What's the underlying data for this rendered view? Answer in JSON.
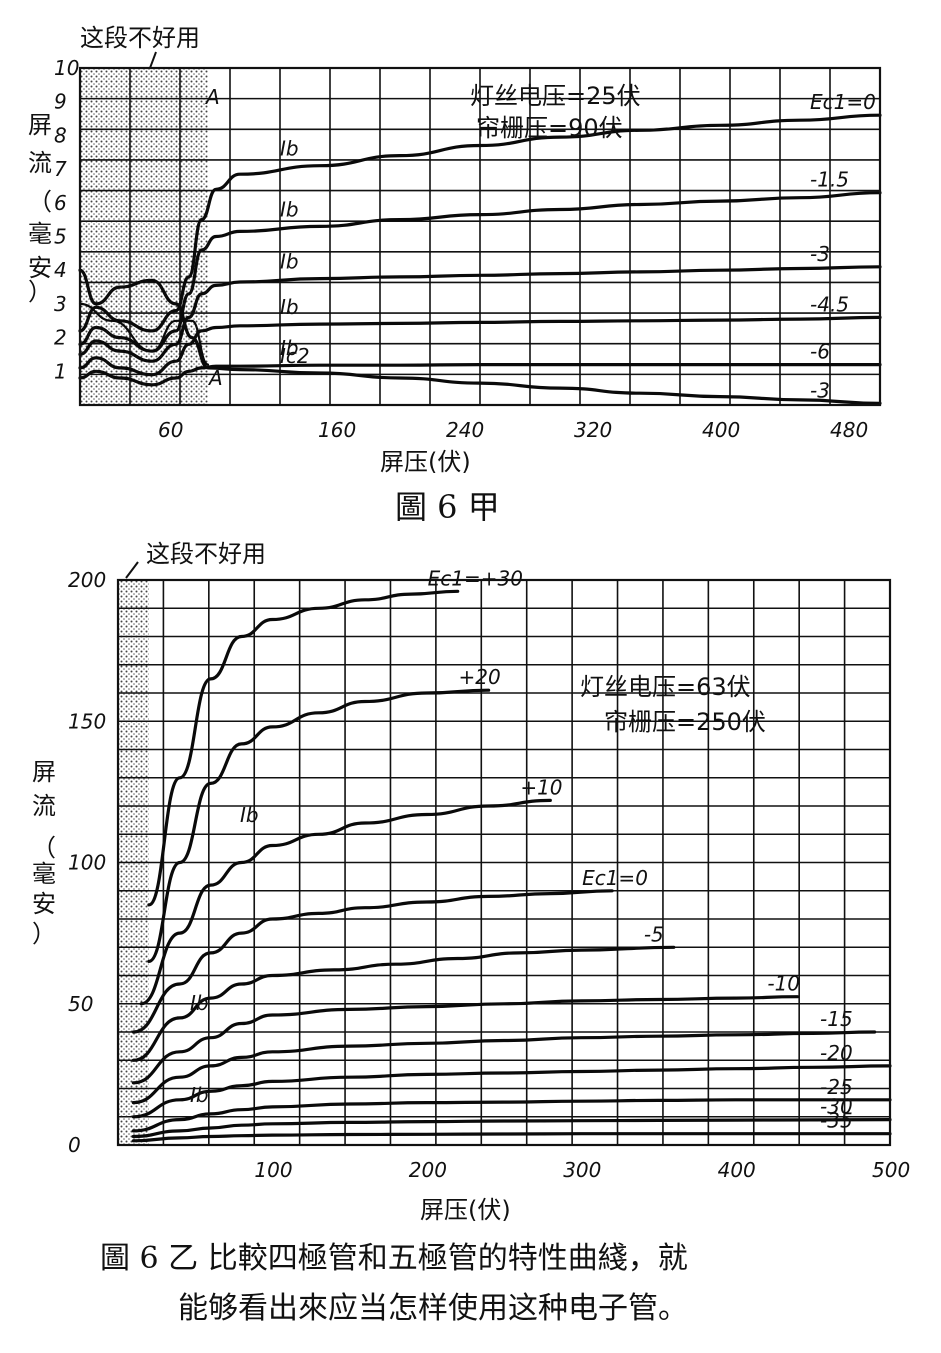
{
  "chart_data": [
    {
      "type": "line",
      "title": "",
      "xlabel": "屏压(伏)",
      "ylabel": "屏流(毫安)",
      "xlim": [
        0,
        500
      ],
      "ylim": [
        0,
        10
      ],
      "x_ticks": [
        "60",
        "160",
        "240",
        "320",
        "400",
        "480"
      ],
      "x_tick_values": [
        60,
        160,
        240,
        320,
        400,
        480
      ],
      "y_ticks": [
        "1",
        "2",
        "3",
        "4",
        "5",
        "6",
        "7",
        "8",
        "9",
        "10"
      ],
      "shaded_region": {
        "label": "这段不好用",
        "x_from": 0,
        "x_to": 80
      },
      "conditions": [
        "灯丝电压=25伏",
        "帘栅压=90伏"
      ],
      "marker": "A",
      "series": [
        {
          "name": "Ec1=0",
          "label": "Ec1=0",
          "curve_label": "Ib",
          "x": [
            0,
            10,
            25,
            45,
            60,
            68,
            76,
            85,
            100,
            150,
            200,
            250,
            300,
            350,
            400,
            450,
            500
          ],
          "y": [
            2.2,
            2.9,
            2.5,
            2.2,
            2.8,
            3.8,
            5.5,
            6.4,
            6.85,
            7.1,
            7.4,
            7.7,
            7.95,
            8.15,
            8.3,
            8.45,
            8.6
          ]
        },
        {
          "name": "-1.5",
          "label": "-1.5",
          "curve_label": "Ib",
          "x": [
            0,
            10,
            25,
            45,
            60,
            68,
            76,
            85,
            100,
            150,
            200,
            250,
            300,
            350,
            400,
            450,
            500
          ],
          "y": [
            1.8,
            2.3,
            2.0,
            1.6,
            2.2,
            3.3,
            4.6,
            5.0,
            5.15,
            5.3,
            5.5,
            5.65,
            5.8,
            5.95,
            6.05,
            6.15,
            6.3
          ]
        },
        {
          "name": "-3",
          "label": "-3",
          "curve_label": "Ib",
          "x": [
            0,
            10,
            25,
            45,
            60,
            68,
            76,
            85,
            100,
            150,
            200,
            250,
            300,
            350,
            400,
            450,
            500
          ],
          "y": [
            1.5,
            1.9,
            1.6,
            1.3,
            1.8,
            2.6,
            3.3,
            3.55,
            3.65,
            3.75,
            3.8,
            3.85,
            3.9,
            3.95,
            4.0,
            4.05,
            4.1
          ]
        },
        {
          "name": "-4.5",
          "label": "-4.5",
          "curve_label": "Ib",
          "x": [
            0,
            10,
            25,
            45,
            60,
            68,
            76,
            85,
            100,
            150,
            200,
            250,
            300,
            350,
            400,
            450,
            500
          ],
          "y": [
            1.1,
            1.4,
            1.1,
            0.9,
            1.3,
            1.8,
            2.2,
            2.3,
            2.35,
            2.4,
            2.42,
            2.45,
            2.48,
            2.5,
            2.52,
            2.55,
            2.6
          ]
        },
        {
          "name": "-6",
          "label": "-6",
          "curve_label": "Ib",
          "x": [
            0,
            10,
            25,
            45,
            60,
            68,
            76,
            85,
            100,
            150,
            200,
            250,
            300,
            350,
            400,
            450,
            500
          ],
          "y": [
            0.8,
            1.0,
            0.8,
            0.6,
            0.8,
            1.0,
            1.1,
            1.15,
            1.15,
            1.18,
            1.18,
            1.2,
            1.2,
            1.2,
            1.2,
            1.2,
            1.2
          ]
        },
        {
          "name": "Ic2 (-3)",
          "label": "-3",
          "curve_label": "Ic2",
          "x": [
            0,
            10,
            25,
            45,
            60,
            70,
            80,
            100,
            150,
            200,
            250,
            300,
            350,
            400,
            450,
            500
          ],
          "y": [
            4.0,
            3.0,
            3.5,
            3.7,
            3.0,
            2.0,
            1.1,
            1.05,
            0.95,
            0.8,
            0.65,
            0.5,
            0.35,
            0.25,
            0.15,
            0.05
          ]
        },
        {
          "name": "",
          "label": "",
          "curve_label": "",
          "x": [
            0,
            20,
            45,
            60,
            70,
            80
          ],
          "y": [
            3.0,
            2.5,
            1.6,
            2.5,
            2.5,
            1.2
          ]
        }
      ]
    },
    {
      "type": "line",
      "title": "",
      "xlabel": "屏压(伏)",
      "ylabel": "屏流(毫安)",
      "xlim": [
        0,
        500
      ],
      "ylim": [
        0,
        200
      ],
      "x_ticks": [
        "100",
        "200",
        "300",
        "400",
        "500"
      ],
      "x_tick_values": [
        100,
        200,
        300,
        400,
        500
      ],
      "y_ticks": [
        "0",
        "50",
        "100",
        "150",
        "200"
      ],
      "y_tick_values": [
        0,
        50,
        100,
        150,
        200
      ],
      "shaded_region": {
        "label": "这段不好用",
        "x_from": 0,
        "x_to": 20
      },
      "conditions": [
        "灯丝电压=63伏",
        "帘栅压=250伏"
      ],
      "series": [
        {
          "name": "Ec1=+30",
          "label": "Ec1=+30",
          "x": [
            20,
            40,
            60,
            80,
            100,
            130,
            160,
            190,
            220
          ],
          "y": [
            85,
            130,
            165,
            180,
            186,
            190,
            193,
            195,
            196
          ]
        },
        {
          "name": "+20",
          "label": "+20",
          "x": [
            20,
            40,
            60,
            80,
            100,
            130,
            160,
            200,
            240
          ],
          "y": [
            65,
            100,
            128,
            142,
            148,
            153,
            157,
            160,
            161
          ]
        },
        {
          "name": "+10",
          "label": "+10",
          "x": [
            15,
            40,
            60,
            80,
            100,
            130,
            160,
            200,
            240,
            280
          ],
          "y": [
            50,
            75,
            92,
            100,
            106,
            110,
            114,
            117,
            120,
            122
          ]
        },
        {
          "name": "Ec1=0",
          "label": "Ec1=0",
          "x": [
            10,
            40,
            60,
            80,
            100,
            130,
            160,
            200,
            240,
            280,
            320
          ],
          "y": [
            40,
            57,
            68,
            75,
            80,
            82,
            84,
            86,
            88,
            89,
            90
          ]
        },
        {
          "name": "-5",
          "label": "-5",
          "x": [
            10,
            40,
            60,
            80,
            100,
            140,
            180,
            220,
            260,
            300,
            360
          ],
          "y": [
            30,
            45,
            52,
            57,
            60,
            62,
            64,
            66,
            68,
            69,
            70
          ]
        },
        {
          "name": "-10",
          "label": "-10",
          "x": [
            10,
            40,
            60,
            80,
            100,
            150,
            200,
            250,
            300,
            350,
            400,
            440
          ],
          "y": [
            22,
            33,
            38,
            43,
            46,
            48,
            49,
            50,
            51,
            51.5,
            52,
            52.5
          ]
        },
        {
          "name": "-15",
          "label": "-15",
          "x": [
            10,
            40,
            60,
            80,
            100,
            150,
            200,
            250,
            300,
            350,
            400,
            450,
            490
          ],
          "y": [
            15,
            24,
            28,
            31,
            33,
            35,
            36,
            37,
            38,
            38.5,
            39,
            39.5,
            40
          ]
        },
        {
          "name": "-20",
          "label": "-20",
          "x": [
            10,
            40,
            60,
            80,
            100,
            150,
            200,
            250,
            300,
            350,
            400,
            450,
            500,
            550
          ],
          "y": [
            10,
            16,
            19,
            21,
            22.5,
            24,
            25,
            25.5,
            26,
            26.5,
            27,
            27.5,
            28,
            28
          ]
        },
        {
          "name": "-25",
          "label": "-25",
          "x": [
            10,
            40,
            60,
            80,
            100,
            150,
            200,
            250,
            300,
            350,
            400,
            450,
            500,
            550
          ],
          "y": [
            5,
            9,
            11,
            12.5,
            13.5,
            14.5,
            15,
            15.2,
            15.5,
            15.8,
            16,
            16,
            16,
            16
          ]
        },
        {
          "name": "-30",
          "label": "-30",
          "x": [
            10,
            40,
            60,
            80,
            100,
            150,
            200,
            250,
            300,
            350,
            400,
            450,
            500,
            550
          ],
          "y": [
            3,
            5,
            6,
            7,
            7.5,
            8,
            8.3,
            8.5,
            8.6,
            8.7,
            8.8,
            8.9,
            9,
            9
          ]
        },
        {
          "name": "-35",
          "label": "-35",
          "x": [
            10,
            40,
            60,
            80,
            100,
            150,
            200,
            250,
            300,
            350,
            400,
            450,
            500,
            550
          ],
          "y": [
            1.5,
            2.5,
            3,
            3.3,
            3.5,
            3.7,
            3.8,
            3.9,
            4,
            4,
            4,
            4,
            4,
            4
          ]
        }
      ],
      "curve_labels": [
        "Ib",
        "Ib",
        "Ib"
      ]
    }
  ],
  "figure": {
    "caption_a": "圖 6 甲",
    "caption_b_line1": "圖 6 乙   比較四極管和五極管的特性曲綫，就",
    "caption_b_line2": "能够看出來应当怎样使用这种电子管。"
  }
}
